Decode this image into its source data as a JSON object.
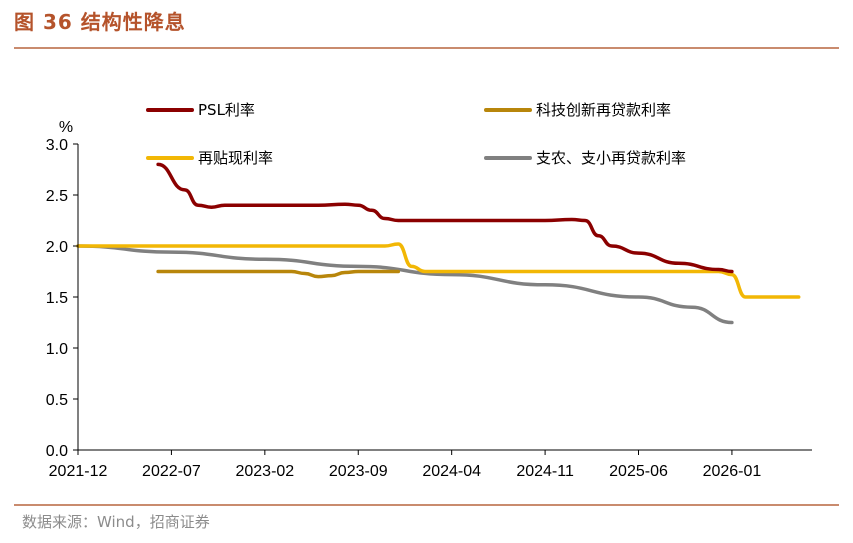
{
  "figure": {
    "title": "图 36 结构性降息",
    "source": "数据来源：Wind，招商证券"
  },
  "chart_data": {
    "type": "line",
    "ylabel": "%",
    "ylim": [
      0,
      3.0
    ],
    "yticks": [
      "0.0",
      "0.5",
      "1.0",
      "1.5",
      "2.0",
      "2.5",
      "3.0"
    ],
    "ytick_values": [
      0,
      0.5,
      1.0,
      1.5,
      2.0,
      2.5,
      3.0
    ],
    "xticks": [
      "2021-12",
      "2022-07",
      "2023-02",
      "2023-09",
      "2024-04",
      "2024-11",
      "2025-06",
      "2026-01"
    ],
    "xlim": [
      "2021-12",
      "2026-07"
    ],
    "grid": false,
    "legend_position": "top",
    "series": [
      {
        "name": "PSL利率",
        "color": "#8b0000",
        "points": [
          [
            "2022-06",
            2.8
          ],
          [
            "2022-08",
            2.55
          ],
          [
            "2022-09",
            2.4
          ],
          [
            "2022-10",
            2.38
          ],
          [
            "2022-11",
            2.4
          ],
          [
            "2023-02",
            2.4
          ],
          [
            "2023-06",
            2.4
          ],
          [
            "2023-08",
            2.41
          ],
          [
            "2023-09",
            2.4
          ],
          [
            "2023-10",
            2.35
          ],
          [
            "2023-11",
            2.27
          ],
          [
            "2023-12",
            2.25
          ],
          [
            "2024-01",
            2.25
          ],
          [
            "2024-06",
            2.25
          ],
          [
            "2024-11",
            2.25
          ],
          [
            "2025-01",
            2.26
          ],
          [
            "2025-02",
            2.25
          ],
          [
            "2025-03",
            2.1
          ],
          [
            "2025-04",
            2.0
          ],
          [
            "2025-06",
            1.93
          ],
          [
            "2025-09",
            1.83
          ],
          [
            "2025-12",
            1.77
          ],
          [
            "2026-01",
            1.75
          ]
        ]
      },
      {
        "name": "科技创新再贷款利率",
        "color": "#b8860b",
        "points": [
          [
            "2022-06",
            1.75
          ],
          [
            "2023-04",
            1.75
          ],
          [
            "2023-05",
            1.73
          ],
          [
            "2023-06",
            1.7
          ],
          [
            "2023-07",
            1.71
          ],
          [
            "2023-08",
            1.74
          ],
          [
            "2023-09",
            1.75
          ],
          [
            "2023-12",
            1.75
          ]
        ]
      },
      {
        "name": "再贴现利率",
        "color": "#f2b705",
        "points": [
          [
            "2021-12",
            2.0
          ],
          [
            "2023-11",
            2.0
          ],
          [
            "2023-12",
            2.02
          ],
          [
            "2024-01",
            1.8
          ],
          [
            "2024-02",
            1.75
          ],
          [
            "2025-12",
            1.75
          ],
          [
            "2026-01",
            1.72
          ],
          [
            "2026-02",
            1.5
          ],
          [
            "2026-03",
            1.5
          ],
          [
            "2026-06",
            1.5
          ]
        ]
      },
      {
        "name": "支农、支小再贷款利率",
        "color": "#808080",
        "points": [
          [
            "2021-12",
            2.0
          ],
          [
            "2022-07",
            1.94
          ],
          [
            "2023-02",
            1.87
          ],
          [
            "2023-09",
            1.8
          ],
          [
            "2024-04",
            1.72
          ],
          [
            "2024-11",
            1.62
          ],
          [
            "2025-06",
            1.5
          ],
          [
            "2025-10",
            1.4
          ],
          [
            "2026-01",
            1.25
          ]
        ]
      }
    ]
  }
}
